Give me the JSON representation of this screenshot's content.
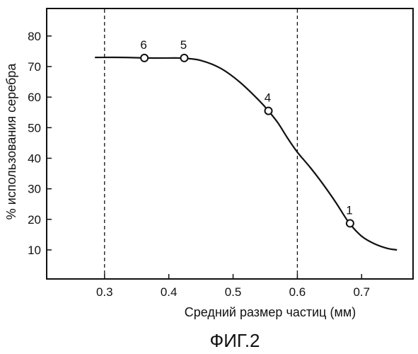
{
  "chart_data": {
    "type": "line",
    "x_axis_label": "Средний размер частиц (мм)",
    "y_axis_label": "% использования серебра",
    "figure_caption": "ФИГ.2",
    "x_ticks": [
      0.3,
      0.4,
      0.5,
      0.6,
      0.7
    ],
    "x_tick_labels": [
      "0.3",
      "0.4",
      "0.5",
      "0.6",
      "0.7"
    ],
    "y_ticks": [
      10,
      20,
      30,
      40,
      50,
      60,
      70,
      80
    ],
    "y_tick_labels": [
      "10",
      "20",
      "30",
      "40",
      "50",
      "60",
      "70",
      "80"
    ],
    "xlim": [
      0.21,
      0.78
    ],
    "ylim": [
      0.5,
      89
    ],
    "reference_lines_x": [
      0.3,
      0.6
    ],
    "curve": {
      "x": [
        0.285,
        0.33,
        0.365,
        0.41,
        0.425,
        0.45,
        0.48,
        0.51,
        0.54,
        0.555,
        0.57,
        0.585,
        0.6,
        0.62,
        0.64,
        0.66,
        0.68,
        0.7,
        0.72,
        0.74,
        0.755
      ],
      "y": [
        73,
        73,
        72.8,
        72.8,
        72.7,
        72,
        69.5,
        65,
        59,
        55.5,
        51.5,
        46.5,
        42,
        37,
        31.5,
        25.5,
        19,
        14.5,
        12,
        10.5,
        10
      ]
    },
    "points": [
      {
        "label": "6",
        "x": 0.362,
        "y": 72.8
      },
      {
        "label": "5",
        "x": 0.424,
        "y": 72.8
      },
      {
        "label": "4",
        "x": 0.555,
        "y": 55.5
      },
      {
        "label": "1",
        "x": 0.682,
        "y": 18.7
      }
    ]
  }
}
